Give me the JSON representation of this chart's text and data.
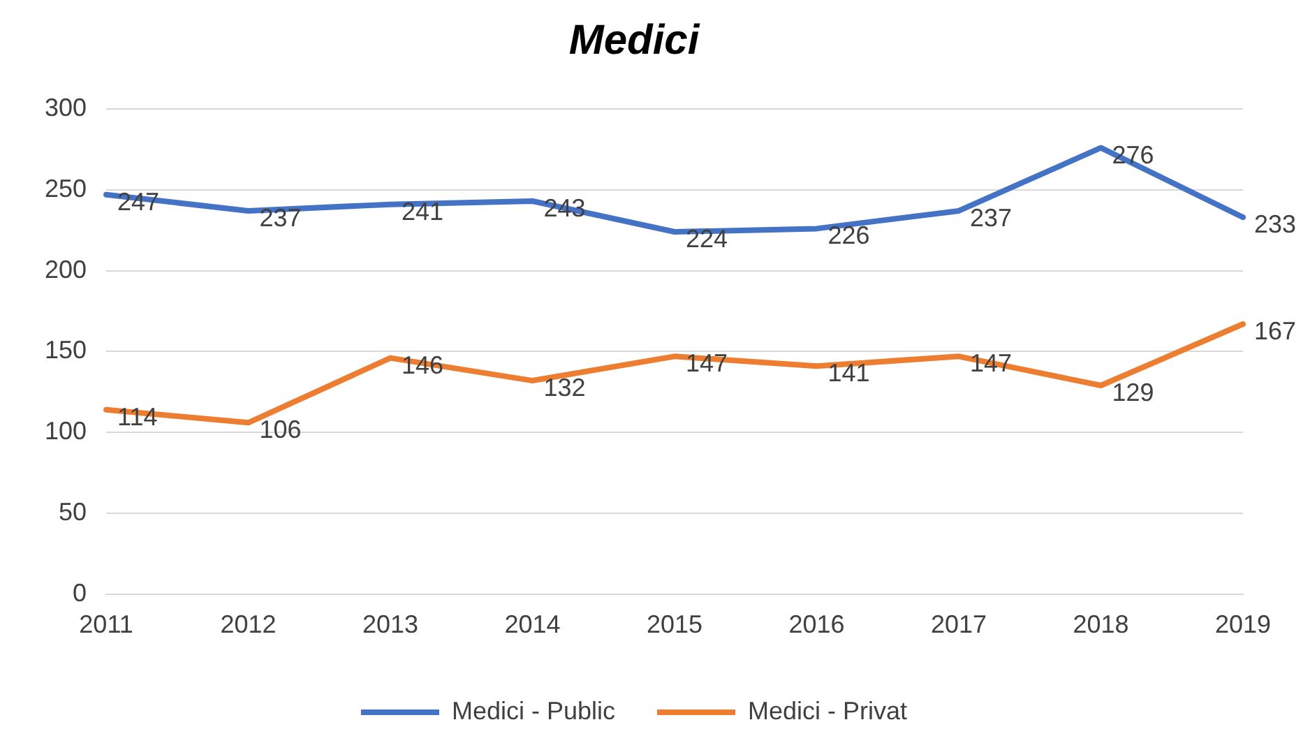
{
  "chart_data": {
    "type": "line",
    "title": "Medici",
    "categories": [
      "2011",
      "2012",
      "2013",
      "2014",
      "2015",
      "2016",
      "2017",
      "2018",
      "2019"
    ],
    "series": [
      {
        "name": "Medici - Public",
        "color": "#4472c4",
        "values": [
          247,
          237,
          241,
          243,
          224,
          226,
          237,
          276,
          233
        ]
      },
      {
        "name": "Medici - Privat",
        "color": "#ed7d31",
        "values": [
          114,
          106,
          146,
          132,
          147,
          141,
          147,
          129,
          167
        ]
      }
    ],
    "ylim": [
      0,
      300
    ],
    "yticks": [
      0,
      50,
      100,
      150,
      200,
      250,
      300
    ],
    "grid": "y",
    "legend": "bottom",
    "data_labels": true,
    "marker": "none",
    "line_style": "solid"
  }
}
